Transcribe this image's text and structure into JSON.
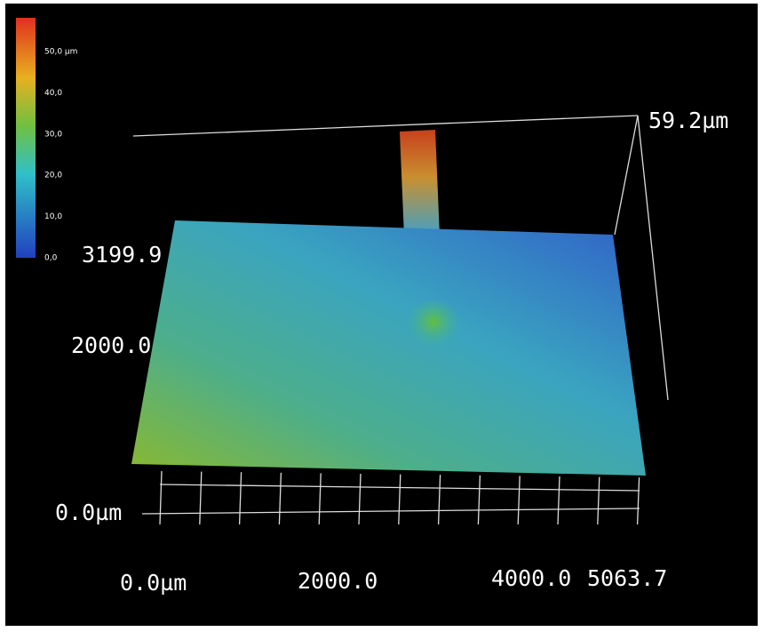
{
  "colorbar": {
    "labels": [
      "50,0 µm",
      "40,0",
      "30,0",
      "20,0",
      "10,0",
      "0,0"
    ]
  },
  "axes": {
    "z_max": "59.2µm",
    "z_min": "0.0µm",
    "y_labels": [
      "3199.9",
      "2000.0"
    ],
    "x_labels": [
      "0.0µm",
      "2000.0",
      "4000.0",
      "5063.7"
    ]
  }
}
